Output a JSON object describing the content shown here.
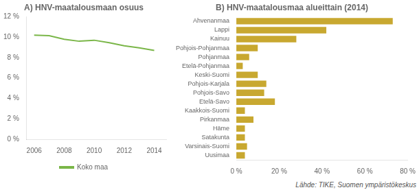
{
  "chart_data": [
    {
      "type": "line",
      "title": "A) HNV-maatalousmaan osuus",
      "x": [
        2006,
        2007,
        2008,
        2009,
        2010,
        2011,
        2012,
        2013,
        2014
      ],
      "series": [
        {
          "name": "Koko maa",
          "color": "#7ab648",
          "values": [
            10.2,
            10.15,
            9.8,
            9.6,
            9.7,
            9.45,
            9.15,
            8.95,
            8.7
          ]
        }
      ],
      "xlim": [
        2005.5,
        2014.8
      ],
      "xticks": [
        2006,
        2008,
        2010,
        2012,
        2014
      ],
      "ylim": [
        0,
        12
      ],
      "yticks": [
        {
          "value": 0,
          "label": "0 %"
        },
        {
          "value": 2,
          "label": "2 %"
        },
        {
          "value": 4,
          "label": "4 %"
        },
        {
          "value": 6,
          "label": "6 %"
        },
        {
          "value": 8,
          "label": "8 %"
        },
        {
          "value": 10,
          "label": "10 %"
        },
        {
          "value": 12,
          "label": "12 %"
        }
      ],
      "grid": false,
      "legend": "bottom"
    },
    {
      "type": "bar",
      "orientation": "horizontal",
      "title": "B) HNV-maatalousmaa alueittain (2014)",
      "categories": [
        "Ahvenanmaa",
        "Lappi",
        "Kainuu",
        "Pohjois-Pohjanmaa",
        "Pohjanmaa",
        "Etelä-Pohjanmaa",
        "Keski-Suomi",
        "Pohjois-Karjala",
        "Pohjois-Savo",
        "Etelä-Savo",
        "Kaakkois-Suomi",
        "Pirkanmaa",
        "Häme",
        "Satakunta",
        "Varsinais-Suomi",
        "Uusimaa"
      ],
      "values": [
        73,
        42,
        28,
        10,
        6,
        3,
        10,
        14,
        13,
        18,
        4,
        8,
        4,
        4,
        5,
        4
      ],
      "color": "#c8a830",
      "xlim": [
        0,
        80
      ],
      "xticks": [
        {
          "value": 0,
          "label": "0 %"
        },
        {
          "value": 20,
          "label": "20 %"
        },
        {
          "value": 40,
          "label": "40 %"
        },
        {
          "value": 60,
          "label": "60 %"
        },
        {
          "value": 80,
          "label": "80 %"
        }
      ],
      "grid": false,
      "annotation": "Lähde: TIKE, Suomen ympäristökeskus"
    }
  ]
}
